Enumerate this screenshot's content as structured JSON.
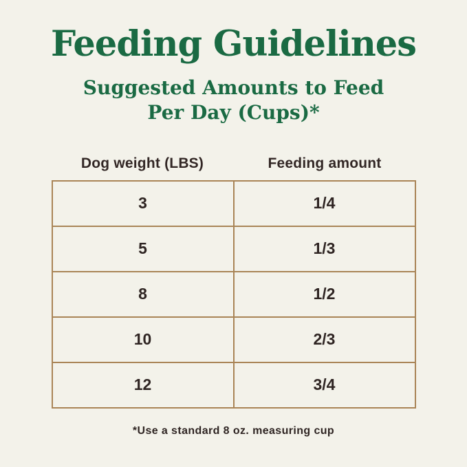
{
  "title": "Feeding Guidelines",
  "subtitle": {
    "line1": "Suggested Amounts to Feed",
    "line2": "Per Day (Cups)*"
  },
  "table": {
    "headers": {
      "weight": "Dog weight (LBS)",
      "amount": "Feeding amount"
    },
    "rows": [
      {
        "weight": "3",
        "amount": "1/4"
      },
      {
        "weight": "5",
        "amount": "1/3"
      },
      {
        "weight": "8",
        "amount": "1/2"
      },
      {
        "weight": "10",
        "amount": "2/3"
      },
      {
        "weight": "12",
        "amount": "3/4"
      }
    ]
  },
  "footnote": "*Use a standard 8 oz. measuring cup",
  "colors": {
    "background": "#F3F2EA",
    "title_green": "#1A6A43",
    "border_tan": "#A98456",
    "text_dark": "#2F2523"
  },
  "chart_data": {
    "type": "table",
    "title": "Feeding Guidelines",
    "subtitle": "Suggested Amounts to Feed Per Day (Cups)*",
    "columns": [
      "Dog weight (LBS)",
      "Feeding amount"
    ],
    "rows": [
      [
        "3",
        "1/4"
      ],
      [
        "5",
        "1/3"
      ],
      [
        "8",
        "1/2"
      ],
      [
        "10",
        "2/3"
      ],
      [
        "12",
        "3/4"
      ]
    ],
    "footnote": "*Use a standard 8 oz. measuring cup"
  }
}
